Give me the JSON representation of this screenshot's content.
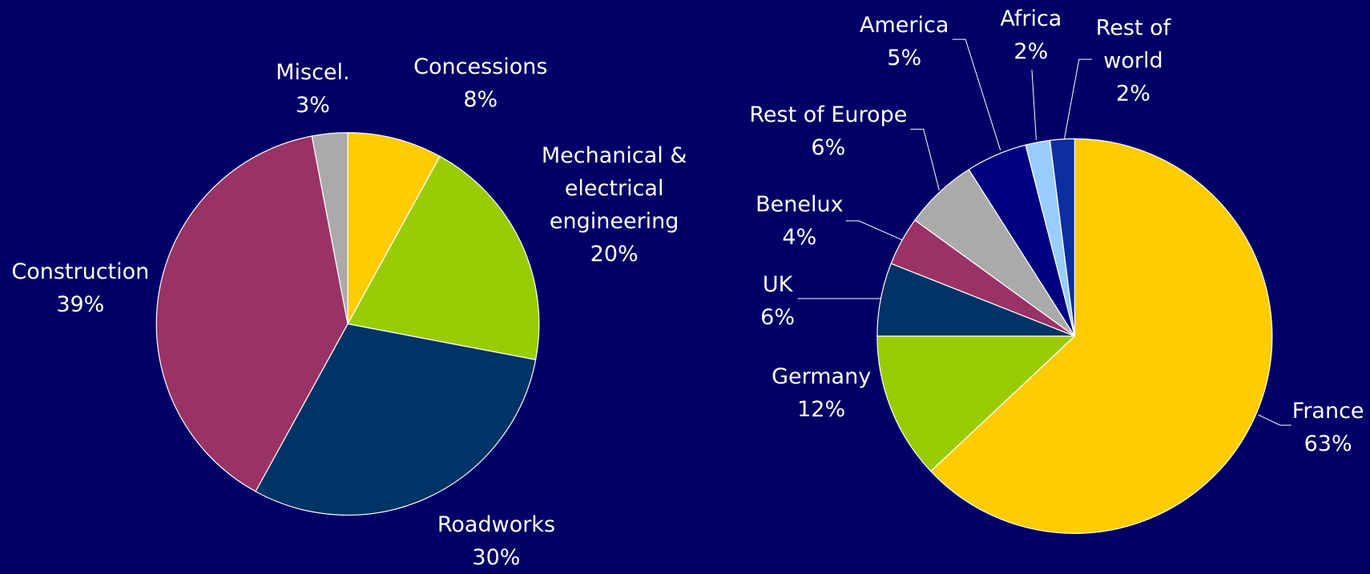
{
  "chart_data": [
    {
      "type": "pie",
      "categories": [
        "Concessions",
        "Mechanical & electrical engineering",
        "Roadworks",
        "Construction",
        "Miscel."
      ],
      "values": [
        8,
        20,
        30,
        39,
        3
      ],
      "value_labels": [
        "8%",
        "20%",
        "30%",
        "39%",
        "3%"
      ],
      "colors": [
        "#ffcc00",
        "#99cc00",
        "#003366",
        "#993366",
        "#aaaaaa"
      ]
    },
    {
      "type": "pie",
      "categories": [
        "France",
        "Germany",
        "UK",
        "Benelux",
        "Rest of Europe",
        "America",
        "Africa",
        "Rest of world"
      ],
      "values": [
        63,
        12,
        6,
        4,
        6,
        5,
        2,
        2
      ],
      "value_labels": [
        "63%",
        "12%",
        "6%",
        "4%",
        "6%",
        "5%",
        "2%",
        "2%"
      ],
      "colors": [
        "#ffcc00",
        "#99cc00",
        "#003366",
        "#993366",
        "#aaaaaa",
        "#000080",
        "#99ccff",
        "#0d2ea0"
      ]
    }
  ]
}
